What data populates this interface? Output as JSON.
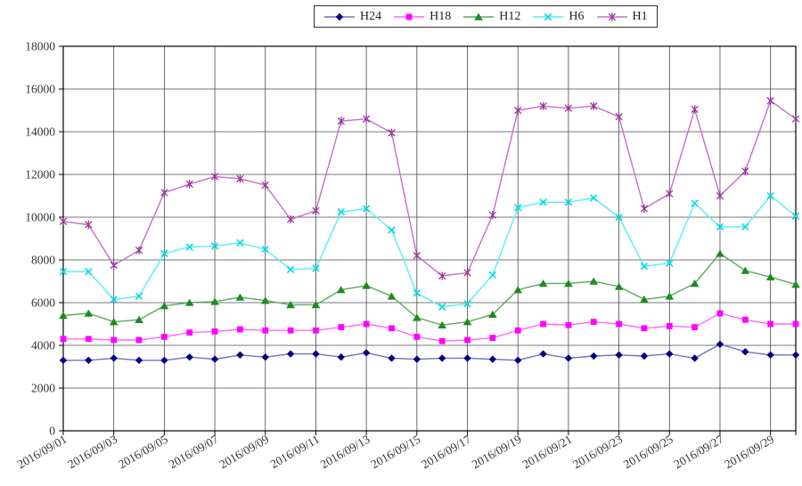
{
  "figure": {
    "background": "#FFFFFF",
    "plot_border_color": "#000000",
    "grid_color": "#4A4A4A",
    "tick_label_color": "#333333",
    "legend_border_color": "#333333"
  },
  "chart_data": {
    "type": "line",
    "title": "",
    "xlabel": "",
    "ylabel": "",
    "grid": true,
    "legend_position": "top",
    "ylim": [
      0,
      18000
    ],
    "y_tick_interval": 2000,
    "y_tick_labels": [
      "0",
      "2000",
      "4000",
      "6000",
      "8000",
      "10000",
      "12000",
      "14000",
      "16000",
      "18000"
    ],
    "x_tick_step": 2,
    "x_tick_labels_shown": [
      "2016/09/01",
      "2016/09/03",
      "2016/09/05",
      "2016/09/07",
      "2016/09/09",
      "2016/09/11",
      "2016/09/13",
      "2016/09/15",
      "2016/09/17",
      "2016/09/19",
      "2016/09/21",
      "2016/09/23",
      "2016/09/25",
      "2016/09/27",
      "2016/09/29"
    ],
    "x": [
      "2016/09/01",
      "2016/09/02",
      "2016/09/03",
      "2016/09/04",
      "2016/09/05",
      "2016/09/06",
      "2016/09/07",
      "2016/09/08",
      "2016/09/09",
      "2016/09/10",
      "2016/09/11",
      "2016/09/12",
      "2016/09/13",
      "2016/09/14",
      "2016/09/15",
      "2016/09/16",
      "2016/09/17",
      "2016/09/18",
      "2016/09/19",
      "2016/09/20",
      "2016/09/21",
      "2016/09/22",
      "2016/09/23",
      "2016/09/24",
      "2016/09/25",
      "2016/09/26",
      "2016/09/27",
      "2016/09/28",
      "2016/09/29",
      "2016/09/30"
    ],
    "series": [
      {
        "name": "H24",
        "marker": "diamond",
        "marker_color": "#000080",
        "line_color": "#7070C0",
        "values": [
          3300,
          3300,
          3400,
          3300,
          3300,
          3450,
          3350,
          3550,
          3450,
          3600,
          3600,
          3450,
          3650,
          3400,
          3350,
          3400,
          3400,
          3350,
          3300,
          3600,
          3400,
          3500,
          3550,
          3500,
          3600,
          3400,
          4050,
          3700,
          3550,
          3550
        ]
      },
      {
        "name": "H18",
        "marker": "square",
        "marker_color": "#FF00FF",
        "line_color": "#FF66FF",
        "values": [
          4300,
          4300,
          4250,
          4250,
          4400,
          4600,
          4650,
          4750,
          4700,
          4700,
          4700,
          4850,
          5000,
          4800,
          4400,
          4200,
          4250,
          4350,
          4700,
          5000,
          4950,
          5100,
          5000,
          4800,
          4900,
          4850,
          5500,
          5200,
          5000,
          5000
        ]
      },
      {
        "name": "H12",
        "marker": "triangle",
        "marker_color": "#1E8A1E",
        "line_color": "#5CA85C",
        "values": [
          5400,
          5500,
          5100,
          5200,
          5850,
          6000,
          6050,
          6250,
          6100,
          5900,
          5900,
          6600,
          6800,
          6300,
          5300,
          4950,
          5100,
          5450,
          6600,
          6900,
          6900,
          7000,
          6750,
          6150,
          6300,
          6900,
          8300,
          7500,
          7200,
          6850
        ]
      },
      {
        "name": "H6",
        "marker": "x",
        "marker_color": "#00D8E8",
        "line_color": "#55EEF2",
        "values": [
          7450,
          7450,
          6150,
          6300,
          8300,
          8600,
          8650,
          8800,
          8500,
          7550,
          7600,
          10250,
          10400,
          9400,
          6450,
          5800,
          5950,
          7300,
          10450,
          10700,
          10700,
          10900,
          10000,
          7700,
          7850,
          10650,
          9550,
          9550,
          11000,
          10050
        ]
      },
      {
        "name": "H1",
        "marker": "asterisk",
        "marker_color": "#993399",
        "line_color": "#C470C4",
        "values": [
          9800,
          9650,
          7750,
          8450,
          11150,
          11550,
          11900,
          11800,
          11500,
          9900,
          10300,
          14500,
          14600,
          13950,
          8200,
          7250,
          7400,
          10100,
          15000,
          15200,
          15100,
          15200,
          14700,
          10400,
          11100,
          15050,
          11000,
          12150,
          15450,
          14600
        ]
      }
    ]
  }
}
